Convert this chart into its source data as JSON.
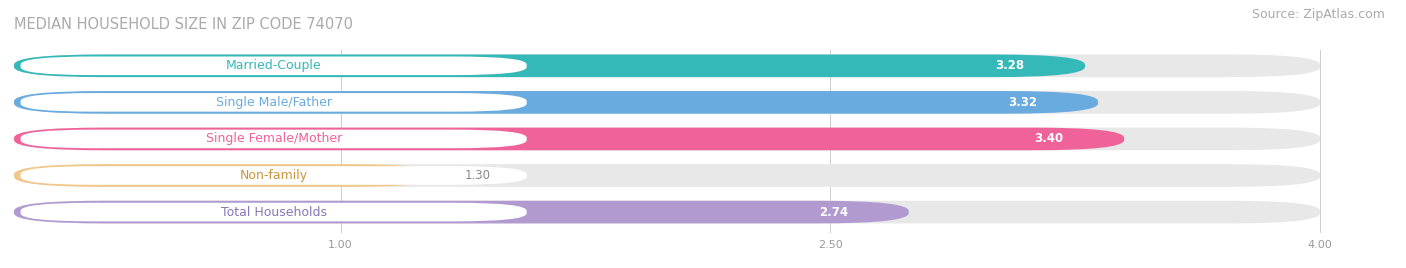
{
  "title": "MEDIAN HOUSEHOLD SIZE IN ZIP CODE 74070",
  "source": "Source: ZipAtlas.com",
  "categories": [
    "Married-Couple",
    "Single Male/Father",
    "Single Female/Mother",
    "Non-family",
    "Total Households"
  ],
  "values": [
    3.28,
    3.32,
    3.4,
    1.3,
    2.74
  ],
  "bar_colors": [
    "#35b8b8",
    "#6aabdf",
    "#f0629a",
    "#f0c88a",
    "#b09ad0"
  ],
  "label_text_colors": [
    "#35b8b8",
    "#6aabdf",
    "#f0629a",
    "#c8963c",
    "#8878b8"
  ],
  "bar_bg_color": "#eeeeee",
  "xlim_start": 0,
  "xlim_end": 4.22,
  "xaxis_max": 4.0,
  "xticks": [
    1.0,
    2.5,
    4.0
  ],
  "title_color": "#aaaaaa",
  "source_color": "#aaaaaa",
  "title_fontsize": 10.5,
  "source_fontsize": 9,
  "label_fontsize": 9,
  "value_fontsize": 8.5
}
